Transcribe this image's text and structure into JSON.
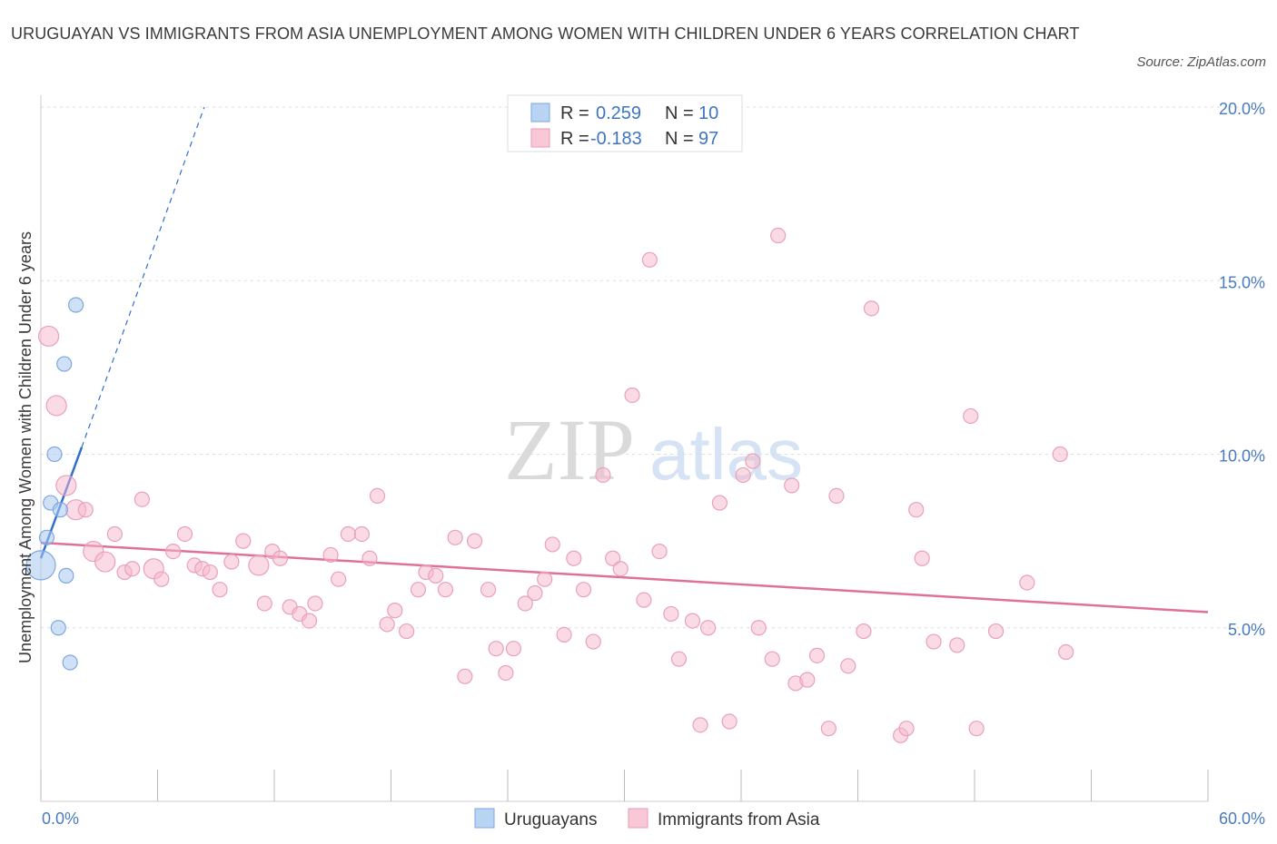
{
  "title": "URUGUAYAN VS IMMIGRANTS FROM ASIA UNEMPLOYMENT AMONG WOMEN WITH CHILDREN UNDER 6 YEARS CORRELATION CHART",
  "source": "Source: ZipAtlas.com",
  "watermark": {
    "zip": "ZIP",
    "atlas": "atlas"
  },
  "legend_top": {
    "r_label": "R =",
    "n_label": "N =",
    "rows": [
      {
        "r": "0.259",
        "n": "10"
      },
      {
        "r": "-0.183",
        "n": "97"
      }
    ]
  },
  "legend_bottom": [
    "Uruguayans",
    "Immigrants from Asia"
  ],
  "chart_data": {
    "type": "scatter",
    "xlabel": "",
    "ylabel": "Unemployment Among Women with Children Under 6 years",
    "xlim": [
      0,
      60
    ],
    "ylim": [
      0,
      20
    ],
    "x_tick_labels": [
      "0.0%",
      "60.0%"
    ],
    "y_ticks": [
      5,
      10,
      15,
      20
    ],
    "y_tick_labels": [
      "5.0%",
      "10.0%",
      "15.0%",
      "20.0%"
    ],
    "grid": true,
    "colors": {
      "uruguayans": "#a9c8f0",
      "uruguayans_line": "#2f6fd0",
      "asia": "#f5b8cc",
      "asia_line": "#e0709a",
      "tick_text": "#4a7bc0"
    },
    "series": [
      {
        "name": "Uruguayans",
        "trend": {
          "x1": 0.0,
          "y1": 7.0,
          "x2": 2.1,
          "y2": 10.2,
          "dash_to_x": 8.4,
          "dash_to_y": 20.0
        },
        "points": [
          {
            "x": 1.8,
            "y": 14.3
          },
          {
            "x": 1.2,
            "y": 12.6
          },
          {
            "x": 0.7,
            "y": 10.0
          },
          {
            "x": 0.5,
            "y": 8.6
          },
          {
            "x": 1.0,
            "y": 8.4
          },
          {
            "x": 0.3,
            "y": 7.6
          },
          {
            "x": 0.0,
            "y": 6.8,
            "big": true
          },
          {
            "x": 1.3,
            "y": 6.5
          },
          {
            "x": 0.9,
            "y": 5.0
          },
          {
            "x": 1.5,
            "y": 4.0
          }
        ]
      },
      {
        "name": "Immigrants from Asia",
        "trend": {
          "x1": 0.0,
          "y1": 7.45,
          "x2": 60.0,
          "y2": 5.45
        },
        "points": [
          {
            "x": 0.4,
            "y": 13.4,
            "big": true
          },
          {
            "x": 0.8,
            "y": 11.4,
            "big": true
          },
          {
            "x": 1.3,
            "y": 9.1,
            "big": true
          },
          {
            "x": 1.8,
            "y": 8.4,
            "big": true
          },
          {
            "x": 2.3,
            "y": 8.4
          },
          {
            "x": 2.7,
            "y": 7.2,
            "big": true
          },
          {
            "x": 3.3,
            "y": 6.9,
            "big": true
          },
          {
            "x": 3.8,
            "y": 7.7
          },
          {
            "x": 4.3,
            "y": 6.6
          },
          {
            "x": 4.7,
            "y": 6.7
          },
          {
            "x": 5.2,
            "y": 8.7
          },
          {
            "x": 5.8,
            "y": 6.7,
            "big": true
          },
          {
            "x": 6.2,
            "y": 6.4
          },
          {
            "x": 6.8,
            "y": 7.2
          },
          {
            "x": 7.4,
            "y": 7.7
          },
          {
            "x": 7.9,
            "y": 6.8
          },
          {
            "x": 8.3,
            "y": 6.7
          },
          {
            "x": 8.7,
            "y": 6.6
          },
          {
            "x": 9.2,
            "y": 6.1
          },
          {
            "x": 9.8,
            "y": 6.9
          },
          {
            "x": 10.4,
            "y": 7.5
          },
          {
            "x": 11.2,
            "y": 6.8,
            "big": true
          },
          {
            "x": 11.5,
            "y": 5.7
          },
          {
            "x": 11.9,
            "y": 7.2
          },
          {
            "x": 12.3,
            "y": 7.0
          },
          {
            "x": 12.8,
            "y": 5.6
          },
          {
            "x": 13.3,
            "y": 5.4
          },
          {
            "x": 13.8,
            "y": 5.2
          },
          {
            "x": 14.1,
            "y": 5.7
          },
          {
            "x": 14.9,
            "y": 7.1
          },
          {
            "x": 15.3,
            "y": 6.4
          },
          {
            "x": 15.8,
            "y": 7.7
          },
          {
            "x": 16.5,
            "y": 7.7
          },
          {
            "x": 16.9,
            "y": 7.0
          },
          {
            "x": 17.3,
            "y": 8.8
          },
          {
            "x": 17.8,
            "y": 5.1
          },
          {
            "x": 18.2,
            "y": 5.5
          },
          {
            "x": 18.8,
            "y": 4.9
          },
          {
            "x": 19.4,
            "y": 6.1
          },
          {
            "x": 19.8,
            "y": 6.6
          },
          {
            "x": 20.3,
            "y": 6.5
          },
          {
            "x": 20.8,
            "y": 6.1
          },
          {
            "x": 21.3,
            "y": 7.6
          },
          {
            "x": 21.8,
            "y": 3.6
          },
          {
            "x": 22.3,
            "y": 7.5
          },
          {
            "x": 23.0,
            "y": 6.1
          },
          {
            "x": 23.4,
            "y": 4.4
          },
          {
            "x": 23.9,
            "y": 3.7
          },
          {
            "x": 24.3,
            "y": 4.4
          },
          {
            "x": 24.9,
            "y": 5.7
          },
          {
            "x": 25.4,
            "y": 6.0
          },
          {
            "x": 25.9,
            "y": 6.4
          },
          {
            "x": 26.3,
            "y": 7.4
          },
          {
            "x": 26.9,
            "y": 4.8
          },
          {
            "x": 27.4,
            "y": 7.0
          },
          {
            "x": 27.9,
            "y": 6.1
          },
          {
            "x": 28.4,
            "y": 4.6
          },
          {
            "x": 28.9,
            "y": 9.4
          },
          {
            "x": 29.4,
            "y": 7.0
          },
          {
            "x": 29.8,
            "y": 6.7
          },
          {
            "x": 30.4,
            "y": 11.7
          },
          {
            "x": 31.0,
            "y": 5.8
          },
          {
            "x": 31.3,
            "y": 15.6
          },
          {
            "x": 31.8,
            "y": 7.2
          },
          {
            "x": 32.4,
            "y": 5.4
          },
          {
            "x": 32.8,
            "y": 4.1
          },
          {
            "x": 33.5,
            "y": 5.2
          },
          {
            "x": 33.9,
            "y": 2.2
          },
          {
            "x": 34.3,
            "y": 5.0
          },
          {
            "x": 34.9,
            "y": 8.6
          },
          {
            "x": 35.4,
            "y": 2.3
          },
          {
            "x": 36.1,
            "y": 9.4
          },
          {
            "x": 36.6,
            "y": 9.8
          },
          {
            "x": 36.9,
            "y": 5.0
          },
          {
            "x": 37.6,
            "y": 4.1
          },
          {
            "x": 37.9,
            "y": 16.3
          },
          {
            "x": 38.6,
            "y": 9.1
          },
          {
            "x": 38.8,
            "y": 3.4
          },
          {
            "x": 39.4,
            "y": 3.5
          },
          {
            "x": 39.9,
            "y": 4.2
          },
          {
            "x": 40.5,
            "y": 2.1
          },
          {
            "x": 40.9,
            "y": 8.8
          },
          {
            "x": 41.5,
            "y": 3.9
          },
          {
            "x": 42.3,
            "y": 4.9
          },
          {
            "x": 42.7,
            "y": 14.2
          },
          {
            "x": 44.2,
            "y": 1.9
          },
          {
            "x": 44.5,
            "y": 2.1
          },
          {
            "x": 45.0,
            "y": 8.4
          },
          {
            "x": 45.3,
            "y": 7.0
          },
          {
            "x": 45.9,
            "y": 4.6
          },
          {
            "x": 47.1,
            "y": 4.5
          },
          {
            "x": 47.8,
            "y": 11.1
          },
          {
            "x": 48.1,
            "y": 2.1
          },
          {
            "x": 49.1,
            "y": 4.9
          },
          {
            "x": 50.7,
            "y": 6.3
          },
          {
            "x": 52.4,
            "y": 10.0
          },
          {
            "x": 52.7,
            "y": 4.3
          }
        ]
      }
    ]
  }
}
